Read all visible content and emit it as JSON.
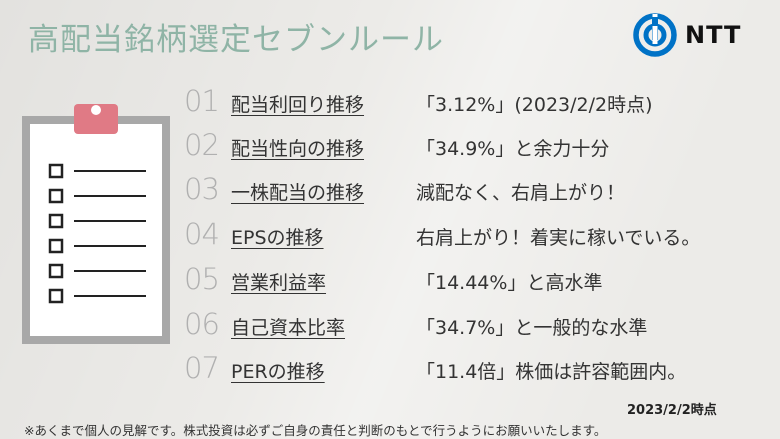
{
  "title": "高配当銘柄選定セブンルール",
  "logo": {
    "text": "NTT",
    "brand_color": "#0072c6"
  },
  "rules": [
    {
      "num": "01",
      "label": "配当利回り推移",
      "value": "「3.12%」(2023/2/2時点)"
    },
    {
      "num": "02",
      "label": "配当性向の推移",
      "value": "「34.9%」と余力十分"
    },
    {
      "num": "03",
      "label": "一株配当の推移",
      "value": "減配なく、右肩上がり！"
    },
    {
      "num": "04",
      "label": "EPSの推移",
      "value": "右肩上がり！着実に稼いでいる。"
    },
    {
      "num": "05",
      "label": "営業利益率",
      "value": "「14.44%」と高水準"
    },
    {
      "num": "06",
      "label": "自己資本比率",
      "value": "「34.7%」と一般的な水準"
    },
    {
      "num": "07",
      "label": "PERの推移",
      "value": "「11.4倍」株価は許容範囲内。"
    }
  ],
  "date": "2023/2/2時点",
  "note": "※あくまで個人の見解です。株式投資は必ずご自身の責任と判断のもとで行うようにお願いいたします。",
  "colors": {
    "title": "#8fb4a6",
    "clip": "#e07a85",
    "board": "#a8a8a8"
  }
}
